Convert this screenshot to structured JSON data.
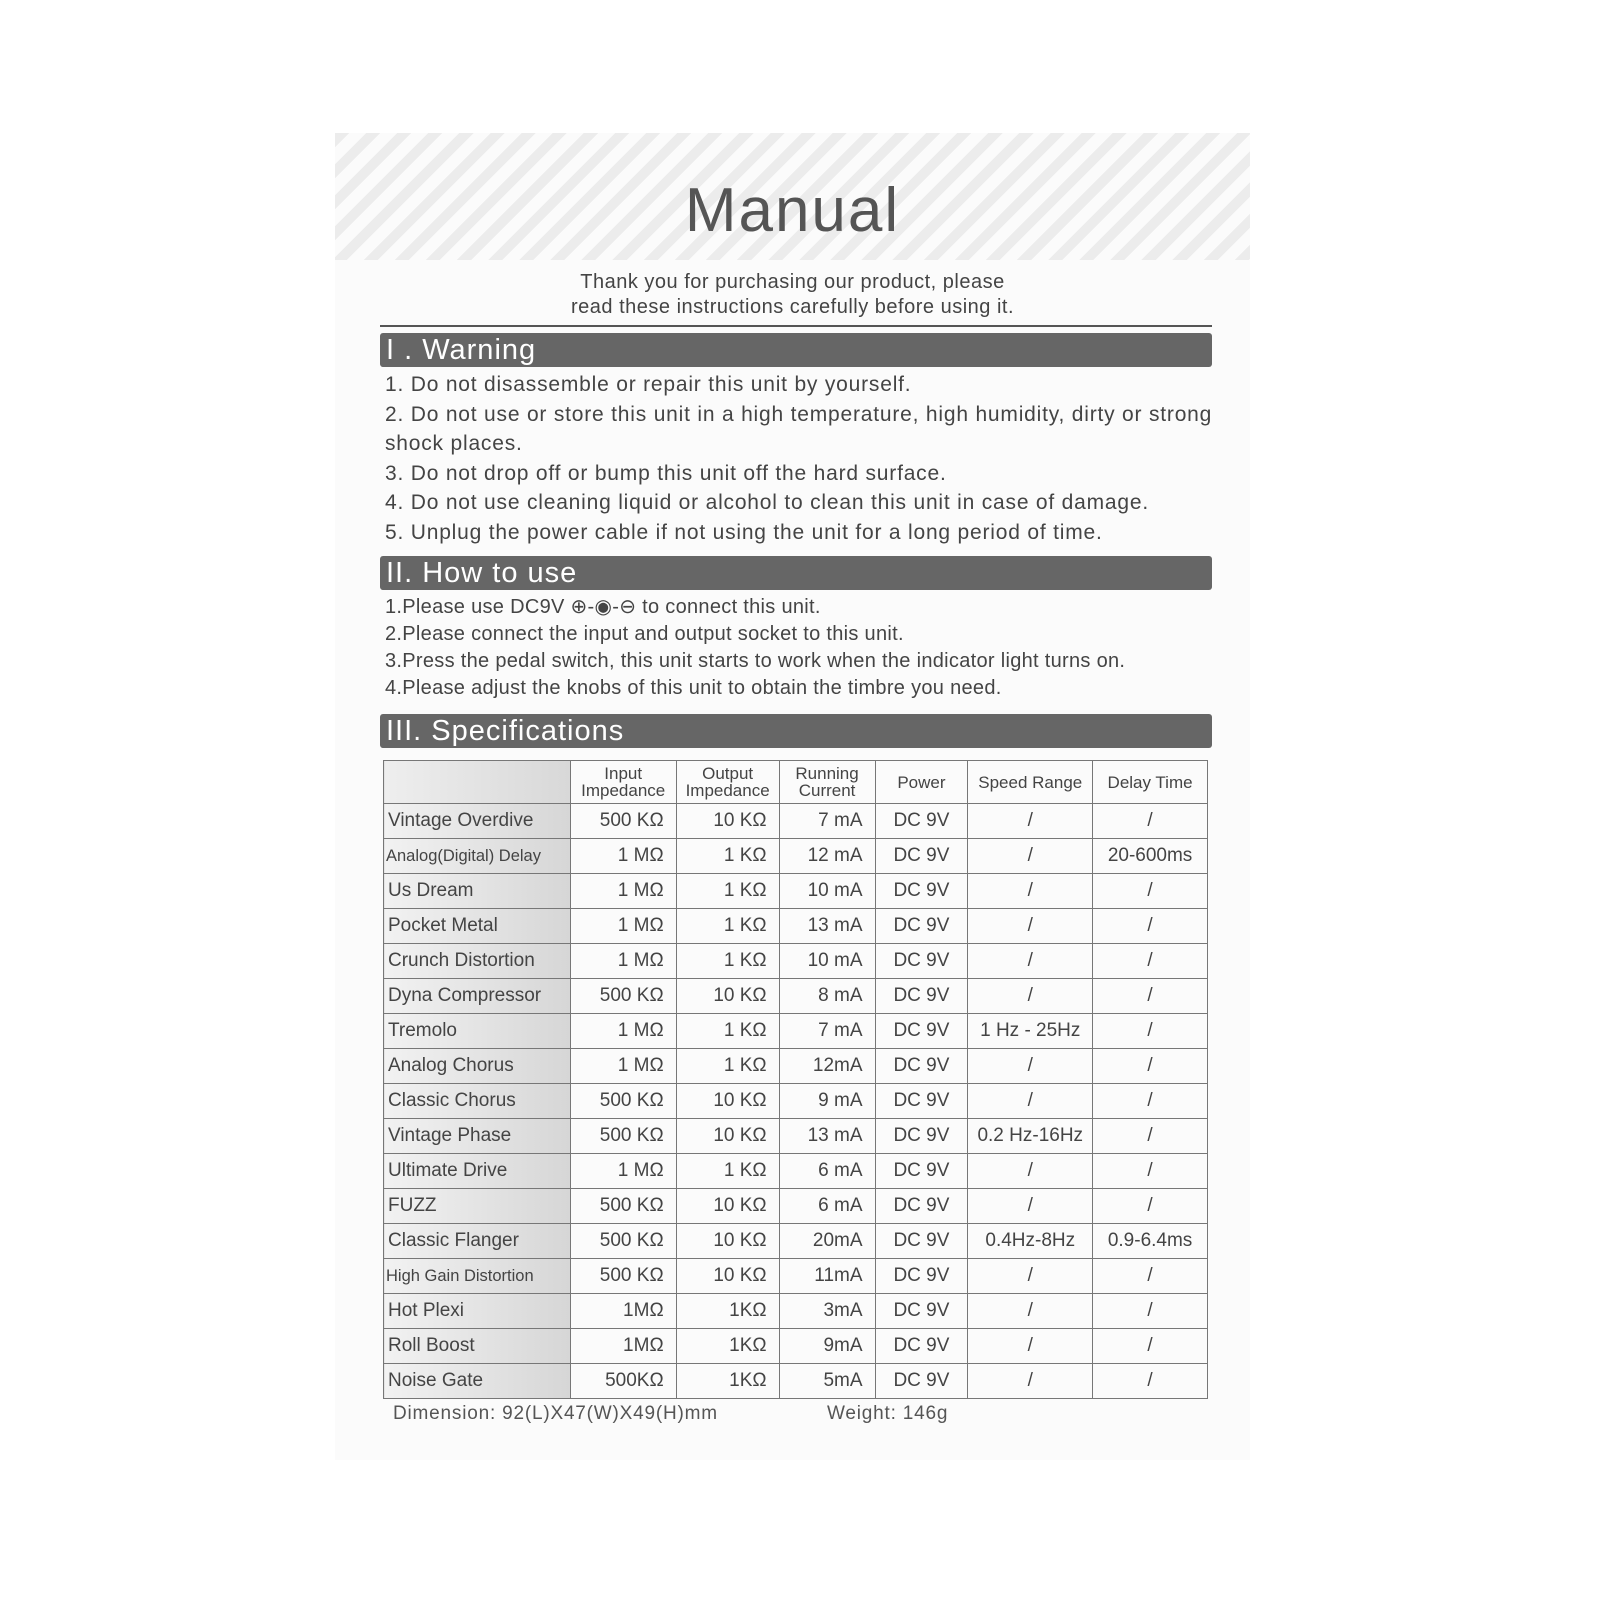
{
  "title": "Manual",
  "intro": [
    "Thank you for purchasing our product, please",
    "read these instructions carefully before using it."
  ],
  "sections": [
    {
      "heading": "I .  Warning",
      "items": [
        "1. Do not disassemble or repair this unit by yourself.",
        "2. Do not use or store this unit in a high temperature, high humidity, dirty or strong shock places.",
        "3. Do not drop off or bump this unit off the hard surface.",
        "4. Do not use cleaning liquid or alcohol to clean this unit in case of damage.",
        "5. Unplug the power cable if not using the unit for a long period of time."
      ]
    },
    {
      "heading": "II.  How to use",
      "items": [
        "1.Please use DC9V ⊕-◉-⊖ to connect this unit.",
        "2.Please connect the input and output socket to this unit.",
        "3.Press the pedal switch, this unit starts to work when the indicator light turns on.",
        "4.Please adjust the knobs of this unit to obtain the timbre you need."
      ]
    },
    {
      "heading": "III.  Specifications"
    }
  ],
  "table": {
    "headers": [
      "",
      "Input Impedance",
      "Output Impedance",
      "Running Current",
      "Power",
      "Speed Range",
      "Delay Time"
    ],
    "rows": [
      [
        "Vintage Overdive",
        "500 KΩ",
        "10 KΩ",
        "7 mA",
        "DC 9V",
        "/",
        "/"
      ],
      [
        "Analog(Digital) Delay",
        "1 MΩ",
        "1 KΩ",
        "12 mA",
        "DC 9V",
        "/",
        "20-600ms"
      ],
      [
        "Us Dream",
        "1 MΩ",
        "1 KΩ",
        "10 mA",
        "DC 9V",
        "/",
        "/"
      ],
      [
        "Pocket Metal",
        "1 MΩ",
        "1 KΩ",
        "13 mA",
        "DC 9V",
        "/",
        "/"
      ],
      [
        "Crunch Distortion",
        "1 MΩ",
        "1 KΩ",
        "10 mA",
        "DC 9V",
        "/",
        "/"
      ],
      [
        "Dyna Compressor",
        "500 KΩ",
        "10 KΩ",
        "8 mA",
        "DC 9V",
        "/",
        "/"
      ],
      [
        "Tremolo",
        "1 MΩ",
        "1 KΩ",
        "7 mA",
        "DC 9V",
        "1 Hz - 25Hz",
        "/"
      ],
      [
        "Analog Chorus",
        "1 MΩ",
        "1 KΩ",
        "12mA",
        "DC 9V",
        "/",
        "/"
      ],
      [
        "Classic Chorus",
        "500 KΩ",
        "10 KΩ",
        "9 mA",
        "DC 9V",
        "/",
        "/"
      ],
      [
        "Vintage Phase",
        "500 KΩ",
        "10 KΩ",
        "13 mA",
        "DC 9V",
        "0.2 Hz-16Hz",
        "/"
      ],
      [
        "Ultimate Drive",
        "1 MΩ",
        "1 KΩ",
        "6 mA",
        "DC 9V",
        "/",
        "/"
      ],
      [
        "FUZZ",
        "500 KΩ",
        "10 KΩ",
        "6 mA",
        "DC 9V",
        "/",
        "/"
      ],
      [
        "Classic Flanger",
        "500 KΩ",
        "10 KΩ",
        "20mA",
        "DC 9V",
        "0.4Hz-8Hz",
        "0.9-6.4ms"
      ],
      [
        "High Gain Distortion",
        "500 KΩ",
        "10 KΩ",
        "11mA",
        "DC 9V",
        "/",
        "/"
      ],
      [
        "Hot Plexi",
        "1MΩ",
        "1KΩ",
        "3mA",
        "DC 9V",
        "/",
        "/"
      ],
      [
        "Roll Boost",
        "1MΩ",
        "1KΩ",
        "9mA",
        "DC 9V",
        "/",
        "/"
      ],
      [
        "Noise Gate",
        "500KΩ",
        "1KΩ",
        "5mA",
        "DC 9V",
        "/",
        "/"
      ]
    ]
  },
  "footer": {
    "dimension": "Dimension:  92(L)X47(W)X49(H)mm",
    "weight": "Weight:  146g"
  }
}
